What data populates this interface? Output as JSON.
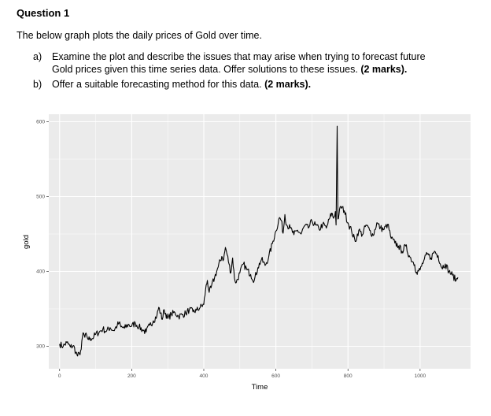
{
  "question": {
    "heading": "Question 1",
    "intro": "The below graph plots the daily prices of Gold over time.",
    "parts": [
      {
        "marker": "a)",
        "text": "Examine the plot and describe the issues that may arise when trying to forecast future Gold prices given this time series data. Offer solutions to these issues.",
        "marks": "(2 marks)."
      },
      {
        "marker": "b)",
        "text": "Offer a suitable forecasting method for this data.",
        "marks": "(2 marks)."
      }
    ]
  },
  "chart_data": {
    "type": "line",
    "xlabel": "Time",
    "ylabel": "gold",
    "xlim": [
      -30,
      1140
    ],
    "ylim": [
      270,
      610
    ],
    "xticks": [
      0,
      200,
      400,
      600,
      800,
      1000
    ],
    "yticks": [
      300,
      400,
      500,
      600
    ],
    "background": "#ebebeb",
    "grid_color": "#ffffff",
    "line_color": "#000000",
    "series": [
      {
        "x": [
          0,
          10,
          20,
          30,
          38,
          45,
          50,
          55,
          60,
          65,
          70,
          75,
          80,
          85,
          90,
          95,
          100,
          110,
          120,
          130,
          140,
          150,
          160,
          165,
          170,
          180,
          190,
          200,
          210,
          220,
          230,
          240,
          250,
          260,
          270,
          275,
          280,
          285,
          290,
          300,
          310,
          320,
          330,
          340,
          350,
          360,
          370,
          380,
          390,
          400,
          405,
          410,
          415,
          420,
          430,
          440,
          450,
          455,
          460,
          465,
          470,
          475,
          480,
          485,
          490,
          500,
          510,
          520,
          530,
          540,
          550,
          560,
          570,
          580,
          590,
          600,
          610,
          615,
          620,
          625,
          630,
          640,
          650,
          660,
          670,
          680,
          690,
          700,
          710,
          720,
          730,
          740,
          750,
          755,
          760,
          765,
          767,
          770,
          772,
          775,
          780,
          790,
          800,
          810,
          820,
          830,
          840,
          850,
          860,
          870,
          880,
          890,
          900,
          910,
          920,
          930,
          940,
          950,
          960,
          970,
          980,
          985,
          990,
          1000,
          1010,
          1020,
          1030,
          1040,
          1050,
          1060,
          1070,
          1080,
          1090,
          1100,
          1105
        ],
        "y": [
          303,
          300,
          305,
          299,
          301,
          292,
          287,
          290,
          296,
          318,
          312,
          315,
          309,
          311,
          310,
          313,
          316,
          319,
          323,
          320,
          325,
          321,
          328,
          331,
          326,
          324,
          329,
          327,
          331,
          326,
          322,
          319,
          328,
          334,
          341,
          352,
          344,
          336,
          349,
          337,
          343,
          345,
          340,
          342,
          344,
          349,
          346,
          348,
          352,
          356,
          376,
          388,
          372,
          378,
          392,
          406,
          420,
          416,
          432,
          422,
          410,
          398,
          418,
          391,
          385,
          398,
          410,
          402,
          396,
          388,
          405,
          416,
          408,
          419,
          437,
          454,
          472,
          468,
          451,
          476,
          462,
          458,
          449,
          455,
          450,
          461,
          458,
          467,
          462,
          456,
          463,
          458,
          472,
          478,
          471,
          480,
          462,
          594,
          470,
          476,
          487,
          481,
          465,
          454,
          440,
          455,
          449,
          462,
          455,
          448,
          465,
          458,
          456,
          463,
          444,
          438,
          434,
          427,
          434,
          421,
          413,
          409,
          399,
          402,
          414,
          423,
          418,
          427,
          421,
          405,
          410,
          400,
          395,
          388,
          392
        ]
      }
    ]
  }
}
